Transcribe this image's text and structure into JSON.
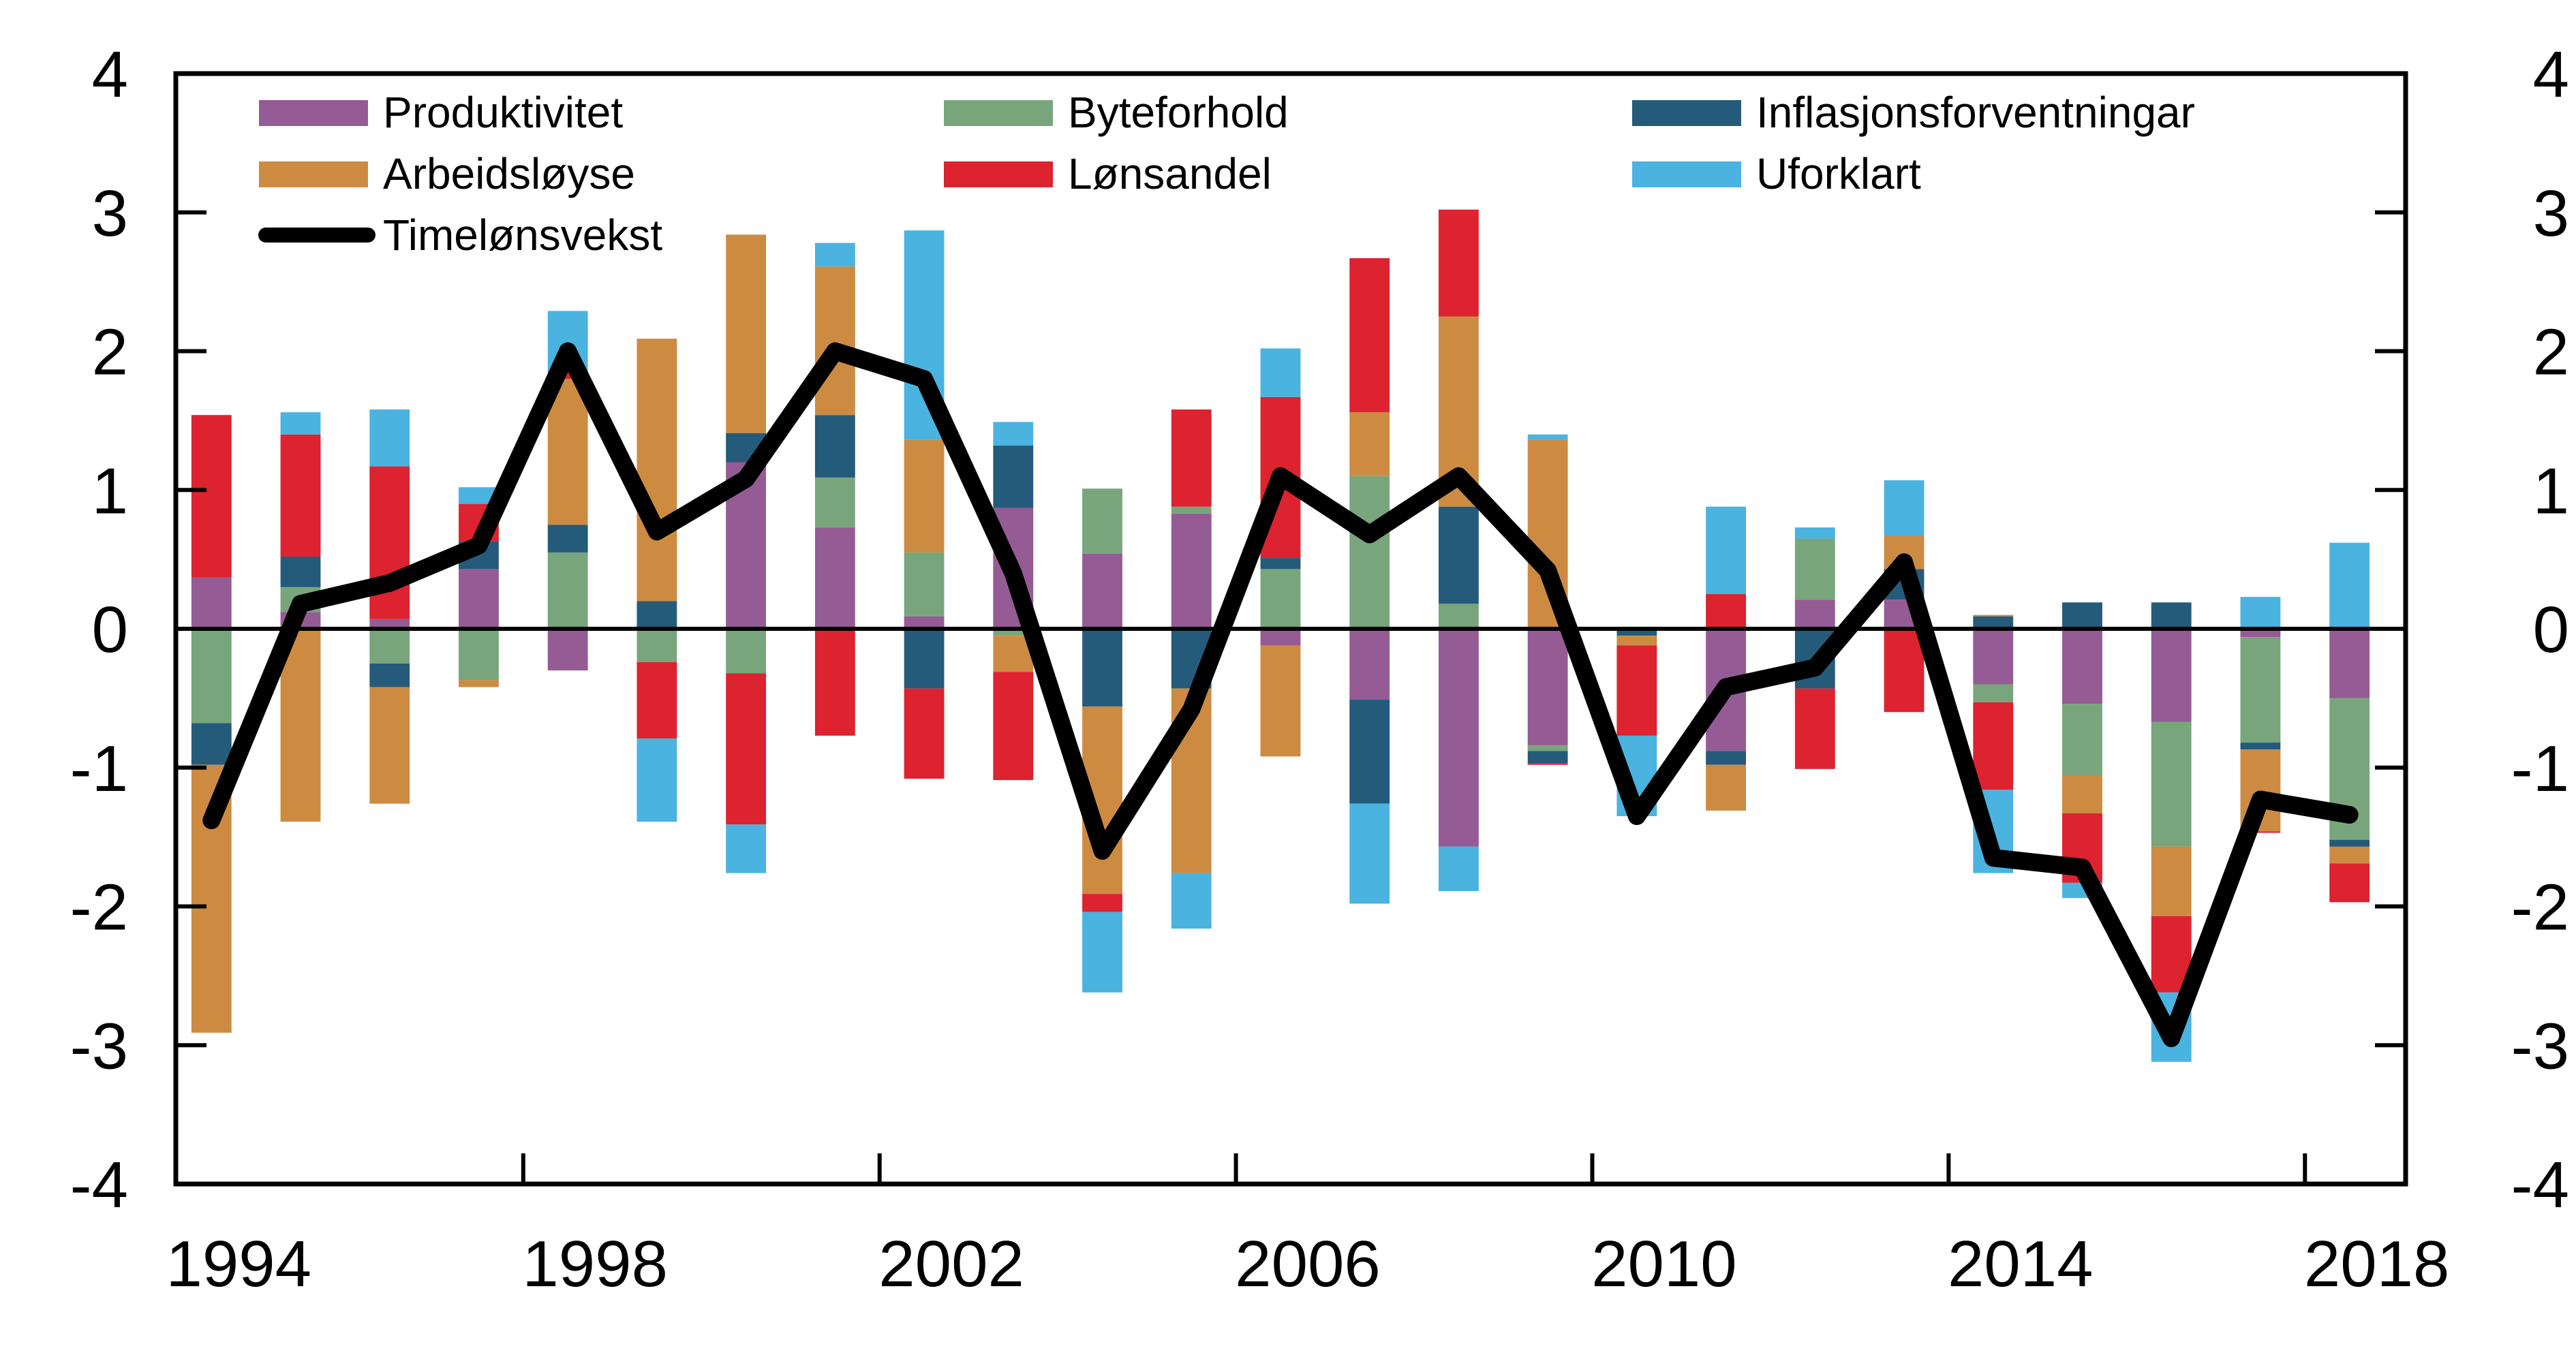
{
  "chart_data": {
    "type": "bar",
    "stacked": true,
    "title": "",
    "xlabel": "",
    "ylabel": "",
    "ylim": [
      -4,
      4
    ],
    "yticks": [
      -4,
      -3,
      -2,
      -1,
      0,
      1,
      2,
      3,
      4
    ],
    "y2ticks": [
      -4,
      -3,
      -2,
      -1,
      0,
      1,
      2,
      3,
      4
    ],
    "xtick_labels": [
      "1994",
      "1998",
      "2002",
      "2006",
      "2010",
      "2014",
      "2018"
    ],
    "grid": false,
    "legend_position": "top",
    "categories": [
      "1994",
      "1995",
      "1996",
      "1997",
      "1998",
      "1999",
      "2000",
      "2001",
      "2002",
      "2003",
      "2004",
      "2005",
      "2006",
      "2007",
      "2008",
      "2009",
      "2010",
      "2011",
      "2012",
      "2013",
      "2014",
      "2015",
      "2016",
      "2017",
      "2018"
    ],
    "series": [
      {
        "name": "Produktivitet",
        "color": "#955B94",
        "values": [
          0.37,
          0.12,
          0.07,
          0.43,
          -0.3,
          0.0,
          1.2,
          0.73,
          0.09,
          0.87,
          0.54,
          0.83,
          -0.12,
          -0.51,
          -1.57,
          -0.84,
          0.0,
          -0.88,
          0.21,
          0.21,
          -0.4,
          -0.54,
          -0.67,
          -0.06,
          -0.5
        ]
      },
      {
        "name": "Byteforhold",
        "color": "#79A57C",
        "values": [
          -0.68,
          0.18,
          -0.25,
          -0.37,
          0.55,
          -0.24,
          -0.32,
          0.36,
          0.46,
          -0.05,
          0.47,
          0.05,
          0.43,
          1.1,
          0.18,
          -0.04,
          0.0,
          0.0,
          0.44,
          0.0,
          -0.13,
          -0.52,
          -0.9,
          -0.76,
          -1.02
        ]
      },
      {
        "name": "Inflasjonsforventningar",
        "color": "#245B7B",
        "values": [
          -0.3,
          0.22,
          -0.17,
          0.2,
          0.2,
          0.2,
          0.21,
          0.45,
          -0.43,
          0.45,
          -0.56,
          -0.43,
          0.08,
          -0.75,
          0.7,
          -0.09,
          -0.05,
          -0.1,
          -0.43,
          0.22,
          0.09,
          0.19,
          0.19,
          -0.05,
          -0.05
        ]
      },
      {
        "name": "Arbeidsløyse",
        "color": "#CD8B42",
        "values": [
          -1.93,
          -1.39,
          -0.84,
          -0.05,
          1.05,
          1.89,
          1.43,
          1.07,
          0.81,
          -0.26,
          -1.35,
          -1.33,
          -0.8,
          0.46,
          1.37,
          1.36,
          -0.07,
          -0.33,
          0.0,
          0.24,
          0.01,
          -0.27,
          -0.5,
          -0.59,
          -0.12
        ]
      },
      {
        "name": "Lønsandel",
        "color": "#DD2230",
        "values": [
          1.17,
          0.88,
          1.1,
          0.27,
          0.05,
          -0.55,
          -1.09,
          -0.77,
          -0.65,
          -0.78,
          -0.13,
          0.7,
          1.16,
          1.11,
          0.77,
          -0.01,
          -0.65,
          0.25,
          -0.58,
          -0.6,
          -0.63,
          -0.5,
          -0.55,
          -0.01,
          -0.28
        ]
      },
      {
        "name": "Uforklart",
        "color": "#4AB3E0",
        "values": [
          0.0,
          0.16,
          0.41,
          0.12,
          0.44,
          -0.6,
          -0.35,
          0.17,
          1.51,
          0.17,
          -0.58,
          -0.4,
          0.35,
          -0.72,
          -0.32,
          0.04,
          -0.58,
          0.63,
          0.08,
          0.4,
          -0.6,
          -0.11,
          -0.5,
          0.23,
          0.62
        ]
      }
    ],
    "line": {
      "name": "Timelønsvekst",
      "color": "#000000",
      "values": [
        -1.38,
        0.18,
        0.33,
        0.6,
        2.0,
        0.7,
        1.08,
        2.0,
        1.8,
        0.4,
        -1.6,
        -0.58,
        1.1,
        0.68,
        1.1,
        0.42,
        -1.35,
        -0.42,
        -0.28,
        0.48,
        -1.65,
        -1.72,
        -2.95,
        -1.23,
        -1.34
      ]
    },
    "legend_order": [
      "Produktivitet",
      "Byteforhold",
      "Inflasjonsforventningar",
      "Arbeidsløyse",
      "Lønsandel",
      "Uforklart",
      "Timelønsvekst"
    ]
  }
}
